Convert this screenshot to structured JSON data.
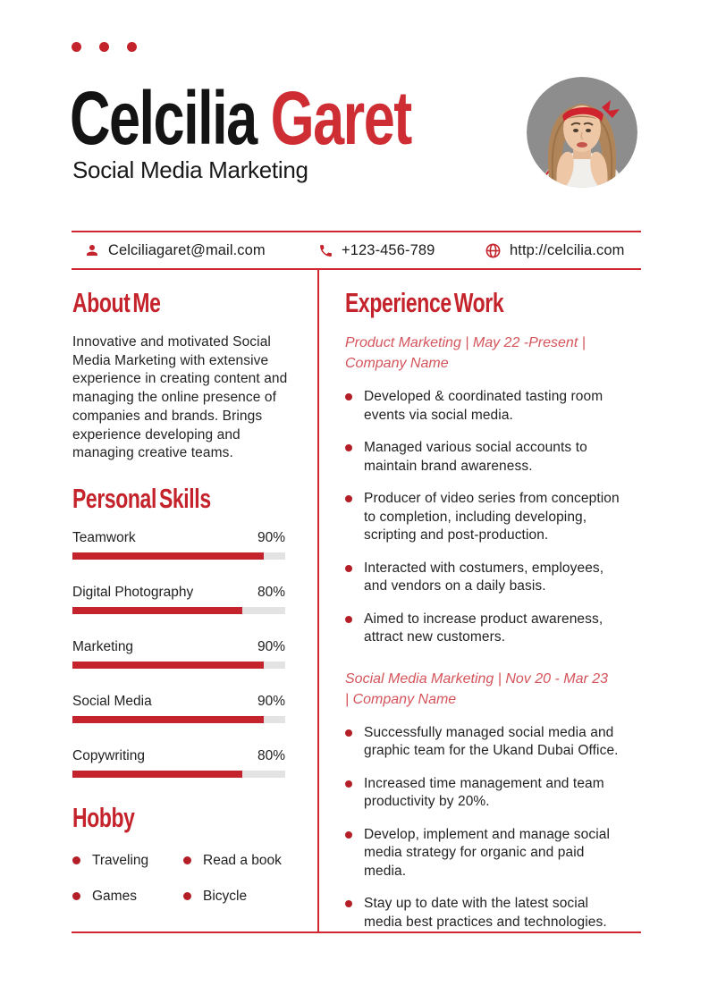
{
  "header": {
    "name_first": "Celcilia",
    "name_last": "Garet",
    "title": "Social Media Marketing"
  },
  "contact": {
    "email": "Celciliagaret@mail.com",
    "phone": "+123-456-789",
    "website": "http://celcilia.com",
    "icons": [
      "person-icon",
      "phone-icon",
      "globe-icon"
    ]
  },
  "about": {
    "heading": "About Me",
    "text": "Innovative and motivated Social Media Marketing with extensive experience in creating content and managing the online presence of companies and brands. Brings experience developing and managing creative teams."
  },
  "skills": {
    "heading": "Personal Skills",
    "items": [
      {
        "label": "Teamwork",
        "percent_label": "90%",
        "percent": 90
      },
      {
        "label": "Digital Photography",
        "percent_label": "80%",
        "percent": 80
      },
      {
        "label": "Marketing",
        "percent_label": "90%",
        "percent": 90
      },
      {
        "label": "Social Media",
        "percent_label": "90%",
        "percent": 90
      },
      {
        "label": "Copywriting",
        "percent_label": "80%",
        "percent": 80
      }
    ]
  },
  "hobby": {
    "heading": "Hobby",
    "items": [
      "Traveling",
      "Read a book",
      "Games",
      "Bicycle"
    ]
  },
  "experience": {
    "heading": "Experience Work",
    "jobs": [
      {
        "meta": "Product Marketing | May 22 -Present | Company Name",
        "bullets": [
          "Developed & coordinated tasting room events via social media.",
          "Managed various social accounts to maintain brand awareness.",
          "Producer of video series from conception to completion, including developing, scripting and post-production.",
          "Interacted with costumers, employees, and vendors on a daily basis.",
          "Aimed to increase product awareness, attract new customers."
        ]
      },
      {
        "meta": "Social Media Marketing | Nov 20 - Mar 23 | Company Name",
        "bullets": [
          "Successfully managed social media and graphic team for the Ukand Dubai Office.",
          "Increased time management and team productivity by 20%.",
          "Develop, implement and manage social media strategy for organic and paid media.",
          "Stay up to date with the latest social media best practices and technologies."
        ]
      }
    ]
  },
  "colors": {
    "primary_red": "#c5232b",
    "accent_red": "#ce2d34",
    "meta_red": "#d4545b",
    "bullet_red": "#b41f27",
    "line_red": "#d22730",
    "track_gray": "#e3e3e3",
    "text_dark": "#232323",
    "photo_bg": "#8d8d8d"
  }
}
